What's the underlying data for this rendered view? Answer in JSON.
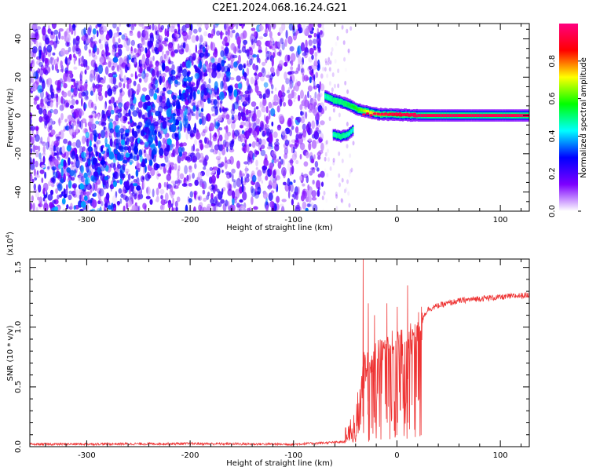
{
  "title": "C2E1.2024.068.16.24.G21",
  "chart_data": [
    {
      "type": "heatmap",
      "xlabel": "Height of straight line (km)",
      "ylabel": "Frequency (Hz)",
      "xlim": [
        -355,
        128
      ],
      "ylim": [
        -50,
        48
      ],
      "x_ticks": [
        -300,
        -200,
        -100,
        0,
        100
      ],
      "x_tick_labels": [
        "-300",
        "-200",
        "-100",
        "0",
        "100"
      ],
      "y_ticks": [
        -40,
        -20,
        0,
        20,
        40
      ],
      "y_tick_labels": [
        "-40",
        "-20",
        "0",
        "20",
        "40"
      ],
      "noise_region": {
        "x_range": [
          -355,
          -72
        ],
        "freq_range": [
          -50,
          48
        ],
        "typical_amplitude": 0.2
      },
      "diagonal_streak": {
        "from": [
          -310,
          -40
        ],
        "to": [
          -170,
          25
        ],
        "amplitude": 0.3
      },
      "signal_track": [
        {
          "x": -70,
          "f": 10,
          "amplitude": 0.45
        },
        {
          "x": -62,
          "f": 8,
          "amplitude": 0.5
        },
        {
          "x": -55,
          "f": 7,
          "amplitude": 0.5
        },
        {
          "x": -45,
          "f": 5,
          "amplitude": 0.55
        },
        {
          "x": -38,
          "f": 3,
          "amplitude": 0.6
        },
        {
          "x": -30,
          "f": 2,
          "amplitude": 0.7
        },
        {
          "x": -22,
          "f": 1,
          "amplitude": 0.75
        },
        {
          "x": -15,
          "f": 0.5,
          "amplitude": 0.8
        },
        {
          "x": -5,
          "f": 0.5,
          "amplitude": 0.85
        },
        {
          "x": 5,
          "f": 0.3,
          "amplitude": 0.9
        },
        {
          "x": 20,
          "f": 0,
          "amplitude": 0.95
        },
        {
          "x": 60,
          "f": 0,
          "amplitude": 0.95
        },
        {
          "x": 100,
          "f": 0,
          "amplitude": 0.95
        },
        {
          "x": 128,
          "f": 0,
          "amplitude": 0.95
        }
      ],
      "secondary_track": [
        {
          "x": -62,
          "f": -10,
          "amplitude": 0.45
        },
        {
          "x": -55,
          "f": -11,
          "amplitude": 0.5
        },
        {
          "x": -48,
          "f": -10,
          "amplitude": 0.45
        },
        {
          "x": -42,
          "f": -7,
          "amplitude": 0.4
        }
      ],
      "colorbar": {
        "label": "Normalized spectral amplitude",
        "range": [
          0,
          1
        ],
        "ticks": [
          0.0,
          0.2,
          0.4,
          0.6,
          0.8
        ],
        "tick_labels": [
          "0.0",
          "0.2",
          "0.4",
          "0.6",
          "0.8"
        ],
        "colors": [
          "#ffffff",
          "#7d00ff",
          "#0000ff",
          "#00ffff",
          "#00ff00",
          "#ffff00",
          "#ff0000",
          "#ff0080"
        ]
      }
    },
    {
      "type": "line",
      "xlabel": "Height of straight line (km)",
      "ylabel": "SNR (10 * v/v)",
      "yscale_note": "(x10",
      "yscale_exp": "4",
      "yscale_close": ")",
      "xlim": [
        -355,
        128
      ],
      "ylim": [
        0,
        1.57
      ],
      "x_ticks": [
        -300,
        -200,
        -100,
        0,
        100
      ],
      "x_tick_labels": [
        "-300",
        "-200",
        "-100",
        "0",
        "100"
      ],
      "y_ticks": [
        0.0,
        0.5,
        1.0,
        1.5
      ],
      "y_tick_labels": [
        "0.0",
        "0.5",
        "1.0",
        "1.5"
      ],
      "line_color": "#ee3333",
      "envelope": [
        {
          "x": -355,
          "y": 0.02
        },
        {
          "x": -200,
          "y": 0.025
        },
        {
          "x": -100,
          "y": 0.02
        },
        {
          "x": -50,
          "y": 0.04
        },
        {
          "x": -45,
          "y": 0.1
        },
        {
          "x": -40,
          "y": 0.25
        },
        {
          "x": -35,
          "y": 0.5
        },
        {
          "x": -32,
          "y": 0.7
        },
        {
          "x": -30,
          "y": 0.65
        },
        {
          "x": -25,
          "y": 0.7
        },
        {
          "x": -20,
          "y": 0.75
        },
        {
          "x": -15,
          "y": 0.8
        },
        {
          "x": -10,
          "y": 0.85
        },
        {
          "x": -5,
          "y": 0.85
        },
        {
          "x": 0,
          "y": 0.85
        },
        {
          "x": 5,
          "y": 0.88
        },
        {
          "x": 10,
          "y": 0.92
        },
        {
          "x": 15,
          "y": 0.95
        },
        {
          "x": 20,
          "y": 1.0
        },
        {
          "x": 25,
          "y": 1.08
        },
        {
          "x": 30,
          "y": 1.15
        },
        {
          "x": 40,
          "y": 1.18
        },
        {
          "x": 60,
          "y": 1.22
        },
        {
          "x": 80,
          "y": 1.24
        },
        {
          "x": 100,
          "y": 1.25
        },
        {
          "x": 128,
          "y": 1.27
        }
      ],
      "spikes": [
        {
          "x": -33,
          "y": 1.57
        },
        {
          "x": -28,
          "y": 1.2
        },
        {
          "x": -22,
          "y": 1.1
        },
        {
          "x": -10,
          "y": 1.2
        },
        {
          "x": 0,
          "y": 1.17
        },
        {
          "x": 10,
          "y": 1.35
        }
      ]
    }
  ]
}
